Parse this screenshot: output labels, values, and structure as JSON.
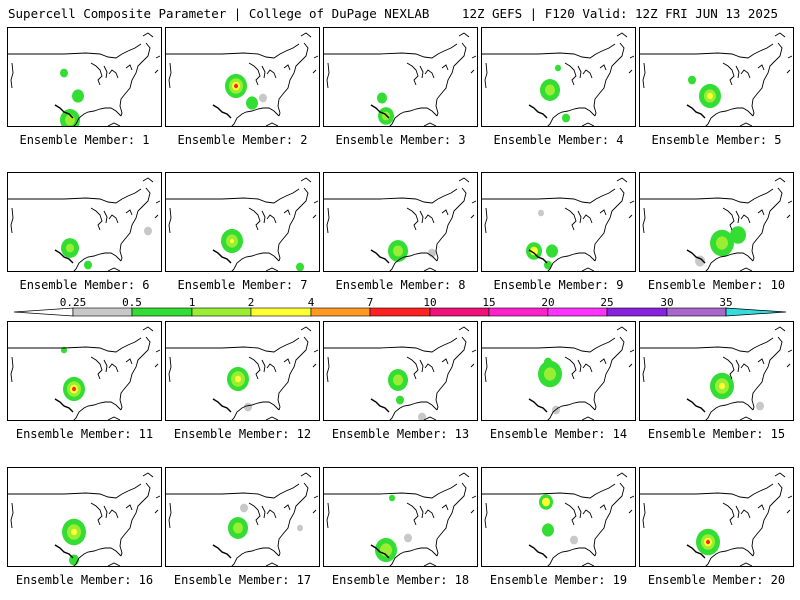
{
  "header": {
    "title": "Supercell Composite Parameter | College of DuPage NEXLAB",
    "run_info": "12Z GEFS | F120 Valid: 12Z FRI JUN 13 2025"
  },
  "panel_label_prefix": "Ensemble Member: ",
  "members": [
    1,
    2,
    3,
    4,
    5,
    6,
    7,
    8,
    9,
    10,
    11,
    12,
    13,
    14,
    15,
    16,
    17,
    18,
    19,
    20
  ],
  "colorbar": {
    "ticks": [
      "0.25",
      "0.5",
      "1",
      "2",
      "4",
      "7",
      "10",
      "15",
      "20",
      "25",
      "30",
      "35"
    ],
    "colors": [
      "#c8c8c8",
      "#33dd33",
      "#99ee33",
      "#ffff33",
      "#ff9922",
      "#ff2222",
      "#ee1177",
      "#ff22cc",
      "#ff33ff",
      "#8822dd",
      "#aa66cc",
      "#33dddd"
    ]
  }
}
